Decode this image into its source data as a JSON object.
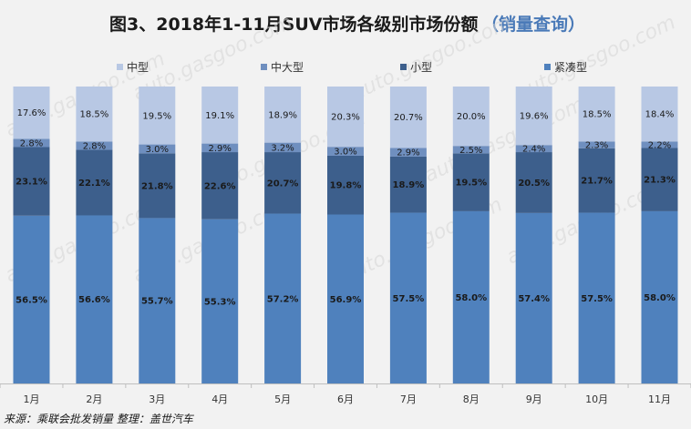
{
  "chart_data": {
    "type": "bar",
    "stacked": "percent",
    "title": "图3、2018年1-11月SUV市场各级别市场份额",
    "subtitle": "（销量查询）",
    "categories": [
      "1月",
      "2月",
      "3月",
      "4月",
      "5月",
      "6月",
      "7月",
      "8月",
      "9月",
      "10月",
      "11月"
    ],
    "series": [
      {
        "name": "紧凑型",
        "color": "#4f81bd",
        "values": [
          56.5,
          56.6,
          55.7,
          55.3,
          57.2,
          56.9,
          57.5,
          58.0,
          57.4,
          57.5,
          58.0
        ]
      },
      {
        "name": "小型",
        "color": "#3d5f8c",
        "values": [
          23.1,
          22.1,
          21.8,
          22.6,
          20.7,
          19.8,
          18.9,
          19.5,
          20.5,
          21.7,
          21.3
        ]
      },
      {
        "name": "中大型",
        "color": "#6f8fbf",
        "values": [
          2.8,
          2.8,
          3.0,
          2.9,
          3.2,
          3.0,
          2.9,
          2.5,
          2.4,
          2.3,
          2.2
        ]
      },
      {
        "name": "中型",
        "color": "#b8c8e4",
        "values": [
          17.6,
          18.5,
          19.5,
          19.1,
          18.9,
          20.3,
          20.7,
          20.0,
          19.6,
          18.5,
          18.4
        ]
      }
    ],
    "legend_order": [
      "中型",
      "中大型",
      "小型",
      "紧凑型"
    ],
    "legend_position": "top",
    "ylim": [
      0,
      100
    ],
    "grid": false
  },
  "footer": {
    "source": "来源：乘联会批发销量    整理：盖世汽车"
  },
  "watermark": {
    "text": "auto.gasgoo.com"
  }
}
